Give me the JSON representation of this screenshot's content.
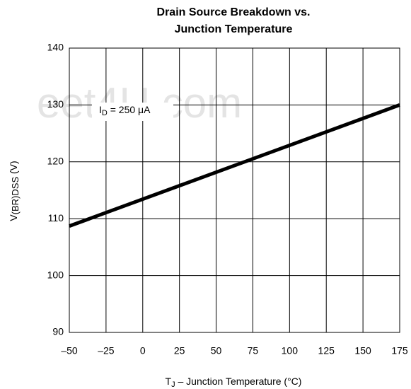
{
  "chart_data": {
    "type": "line",
    "title": [
      "Drain Source Breakdown vs.",
      "Junction Temperature"
    ],
    "watermark": "eet4U.com",
    "annotation": [
      "I",
      "D",
      " = 250 μA"
    ],
    "xlabel": [
      "T",
      "J",
      "  –  Junction Temperature (°C)"
    ],
    "ylabel": [
      "V",
      "(BR)DSS",
      " (V)"
    ],
    "x": [
      -50,
      175
    ],
    "series": [
      {
        "name": null,
        "color": "#000000",
        "values": [
          108.7,
          130
        ]
      }
    ],
    "xlim": [
      -50,
      175
    ],
    "ylim": [
      90,
      140
    ],
    "xticks": [
      {
        "value": -50,
        "label": "–50"
      },
      {
        "value": -25,
        "label": "–25"
      },
      0,
      25,
      50,
      75,
      100,
      125,
      150,
      175
    ],
    "yticks": [
      90,
      100,
      110,
      120,
      130,
      140
    ],
    "grid": true
  }
}
